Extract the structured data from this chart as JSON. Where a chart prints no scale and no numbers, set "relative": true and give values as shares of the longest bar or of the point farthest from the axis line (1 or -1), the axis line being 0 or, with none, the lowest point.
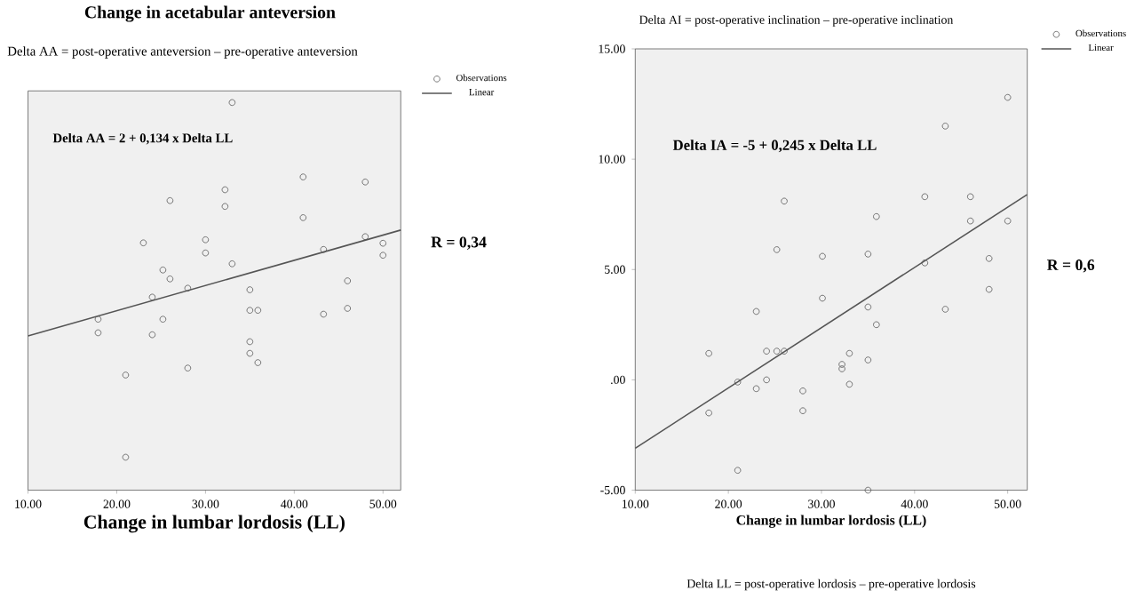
{
  "chart_data": [
    {
      "type": "scatter",
      "title": "Change in acetabular anteversion",
      "xlabel": "Change in lumbar lordosis (LL)",
      "relative": true,
      "tick_labels": "x",
      "legend": "top right",
      "marker": "circle",
      "annotations": [
        "Delta AA = post-operative anteversion – pre-operative anteversion",
        "Delta AA = 2 + 0,134 x Delta LL",
        "R = 0,34"
      ],
      "xlim": [
        10,
        52
      ],
      "xticks": [
        {
          "value": 10,
          "label": "10.00"
        },
        {
          "value": 20,
          "label": "20.00"
        },
        {
          "value": 30,
          "label": "30.00"
        },
        {
          "value": 40,
          "label": "40.00"
        },
        {
          "value": 50,
          "label": "50.00"
        }
      ],
      "series": [
        {
          "name": "Observations",
          "color": "#555555",
          "x": [
            33.0,
            41.0,
            48.0,
            32.2,
            26.0,
            32.2,
            41.0,
            23.0,
            30.0,
            30.0,
            33.0,
            43.3,
            48.0,
            50.0,
            50.0,
            25.2,
            26.0,
            28.0,
            35.0,
            46.0,
            24.0,
            17.9,
            25.2,
            35.0,
            35.9,
            43.3,
            46.0,
            17.9,
            24.0,
            35.0,
            35.0,
            35.9,
            28.0,
            21.0,
            21.0
          ],
          "values": [
            1.0,
            0.808,
            0.795,
            0.775,
            0.747,
            0.732,
            0.703,
            0.638,
            0.646,
            0.612,
            0.584,
            0.621,
            0.654,
            0.637,
            0.606,
            0.568,
            0.545,
            0.521,
            0.517,
            0.54,
            0.498,
            0.441,
            0.441,
            0.464,
            0.464,
            0.454,
            0.469,
            0.406,
            0.401,
            0.383,
            0.353,
            0.329,
            0.315,
            0.297,
            0.085
          ]
        },
        {
          "name": "Linear",
          "type": "line",
          "marker": "none",
          "color": "#555555",
          "x": [
            10,
            52
          ],
          "values": [
            0.398,
            0.671
          ]
        }
      ]
    },
    {
      "type": "scatter",
      "xlabel": "Change in lumbar lordosis (LL)",
      "legend": "top right",
      "marker": "circle",
      "annotations": [
        "Delta AI = post-operative inclination – pre-operative inclination",
        "Delta IA = -5 + 0,245 x Delta LL",
        "R = 0,6",
        "Delta LL = post-operative lordosis – pre-operative lordosis"
      ],
      "xlim": [
        10,
        52.1
      ],
      "xticks": [
        {
          "value": 10,
          "label": "10.00"
        },
        {
          "value": 20,
          "label": "20.00"
        },
        {
          "value": 30,
          "label": "30.00"
        },
        {
          "value": 40,
          "label": "40.00"
        },
        {
          "value": 50,
          "label": "50.00"
        }
      ],
      "ylim": [
        -5,
        15
      ],
      "yticks": [
        {
          "value": -5,
          "label": "-5.00"
        },
        {
          "value": 0,
          "label": ".00"
        },
        {
          "value": 5,
          "label": "5.00"
        },
        {
          "value": 10,
          "label": "10.00"
        },
        {
          "value": 15,
          "label": "15.00"
        }
      ],
      "series": [
        {
          "name": "Observations",
          "color": "#555555",
          "x": [
            50.0,
            43.3,
            41.1,
            46.0,
            26.0,
            35.9,
            46.0,
            50.0,
            25.2,
            30.1,
            35.0,
            41.1,
            48.0,
            48.0,
            30.1,
            23.0,
            35.0,
            43.3,
            35.9,
            17.9,
            24.1,
            25.2,
            26.0,
            33.0,
            32.2,
            32.2,
            35.0,
            21.0,
            24.1,
            23.0,
            28.0,
            33.0,
            17.9,
            28.0,
            21.0,
            35.0
          ],
          "values": [
            12.8,
            11.5,
            8.3,
            8.3,
            8.1,
            7.4,
            7.2,
            7.2,
            5.9,
            5.6,
            5.7,
            5.3,
            5.5,
            4.1,
            3.7,
            3.1,
            3.3,
            3.2,
            2.5,
            1.2,
            1.3,
            1.3,
            1.3,
            1.2,
            0.7,
            0.5,
            0.9,
            -0.1,
            0.0,
            -0.4,
            -0.5,
            -0.2,
            -1.5,
            -1.4,
            -4.1,
            -5.0
          ]
        },
        {
          "name": "Linear",
          "type": "line",
          "marker": "none",
          "color": "#555555",
          "x": [
            10,
            52.1
          ],
          "values": [
            -3.1,
            8.4
          ]
        }
      ]
    }
  ]
}
